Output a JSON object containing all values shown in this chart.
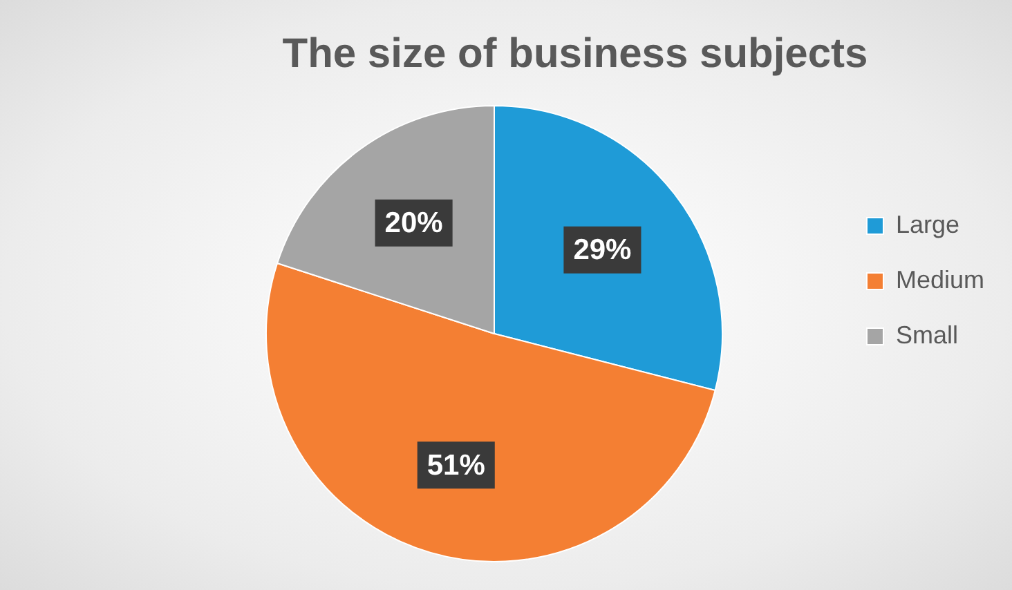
{
  "chart_data": {
    "type": "pie",
    "title": "The size of business subjects",
    "categories": [
      "Large",
      "Medium",
      "Small"
    ],
    "values": [
      29,
      51,
      20
    ],
    "colors": [
      "#1f9bd7",
      "#f47f33",
      "#a5a5a5"
    ],
    "value_labels": [
      "29%",
      "51%",
      "20%"
    ],
    "legend": "right"
  }
}
